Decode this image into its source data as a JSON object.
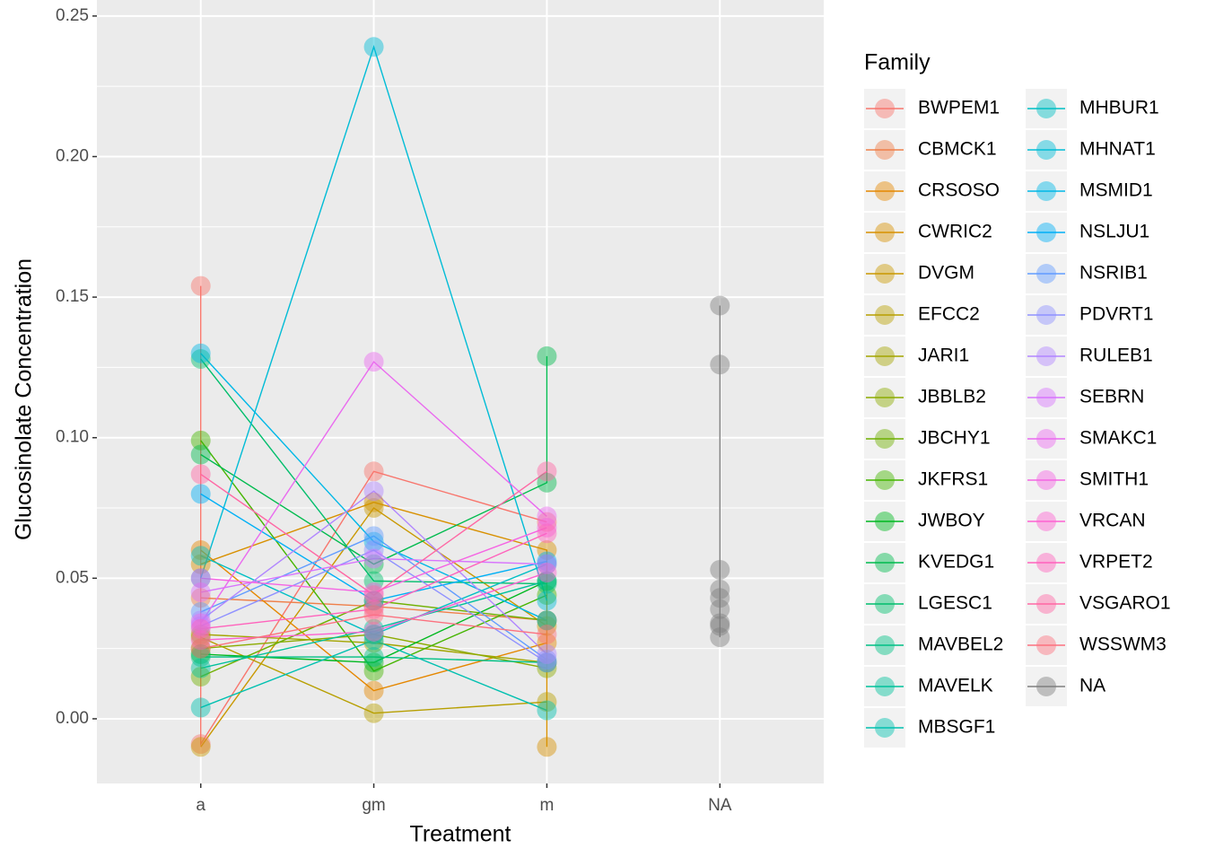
{
  "chart_data": {
    "type": "line",
    "x_label": "Treatment",
    "y_label": "Glucosinolate Concentration",
    "legend_title": "Family",
    "categories": [
      "a",
      "gm",
      "m",
      "NA"
    ],
    "ylim": [
      -0.023,
      0.2557
    ],
    "yticks": [
      {
        "value": 0,
        "label": "0.00"
      },
      0.05,
      {
        "value": 0.1,
        "label": "0.10"
      },
      0.15,
      {
        "value": 0.2,
        "label": "0.20"
      },
      0.25
    ],
    "grid": true,
    "legend": "right",
    "series": [
      {
        "name": "BWPEM1",
        "color": "#F8766D",
        "x": [
          "a",
          "a",
          "gm",
          "m"
        ],
        "values": [
          0.154,
          -0.009,
          0.088,
          0.07
        ]
      },
      {
        "name": "CBMCK1",
        "color": "#EF7F49",
        "x": [
          "a",
          "gm",
          "m"
        ],
        "values": [
          0.043,
          0.04,
          0.035
        ]
      },
      {
        "name": "CRSOSO",
        "color": "#E58700",
        "x": [
          "a",
          "gm",
          "m"
        ],
        "values": [
          0.06,
          0.01,
          0.027
        ]
      },
      {
        "name": "CWRIC2",
        "color": "#D89000",
        "x": [
          "a",
          "gm",
          "m",
          "m"
        ],
        "values": [
          0.055,
          0.077,
          0.06,
          -0.01
        ]
      },
      {
        "name": "DVGM",
        "color": "#C99800",
        "x": [
          "a",
          "gm",
          "m"
        ],
        "values": [
          -0.01,
          0.075,
          0.033
        ]
      },
      {
        "name": "EFCC2",
        "color": "#B79F00",
        "x": [
          "a",
          "gm",
          "m"
        ],
        "values": [
          0.029,
          0.002,
          0.006
        ]
      },
      {
        "name": "JARI1",
        "color": "#A3A500",
        "x": [
          "a",
          "gm",
          "m"
        ],
        "values": [
          0.03,
          0.027,
          0.02
        ]
      },
      {
        "name": "JBBLB2",
        "color": "#8CAB00",
        "x": [
          "a",
          "gm",
          "m"
        ],
        "values": [
          0.025,
          0.03,
          0.018
        ]
      },
      {
        "name": "JBCHY1",
        "color": "#6FB000",
        "x": [
          "a",
          "gm",
          "m"
        ],
        "values": [
          0.015,
          0.042,
          0.035
        ]
      },
      {
        "name": "JKFRS1",
        "color": "#45B500",
        "x": [
          "a",
          "gm",
          "m"
        ],
        "values": [
          0.099,
          0.017,
          0.044
        ]
      },
      {
        "name": "JWBOY",
        "color": "#00B81F",
        "x": [
          "a",
          "gm",
          "m"
        ],
        "values": [
          0.023,
          0.02,
          0.049
        ]
      },
      {
        "name": "KVEDG1",
        "color": "#00BB4E",
        "x": [
          "a",
          "gm",
          "m",
          "m"
        ],
        "values": [
          0.094,
          0.055,
          0.084,
          0.129
        ]
      },
      {
        "name": "LGESC1",
        "color": "#00BE6C",
        "x": [
          "a",
          "gm",
          "m"
        ],
        "values": [
          0.128,
          0.049,
          0.048
        ]
      },
      {
        "name": "MAVBEL2",
        "color": "#00C085",
        "x": [
          "a",
          "gm",
          "m"
        ],
        "values": [
          0.022,
          0.022,
          0.02
        ]
      },
      {
        "name": "MAVELK",
        "color": "#00C19B",
        "x": [
          "a",
          "gm",
          "m"
        ],
        "values": [
          0.018,
          0.032,
          0.049
        ]
      },
      {
        "name": "MBSGF1",
        "color": "#00C0B0",
        "x": [
          "a",
          "gm",
          "m"
        ],
        "values": [
          0.004,
          0.028,
          0.003
        ]
      },
      {
        "name": "MHBUR1",
        "color": "#00BFC4",
        "x": [
          "a",
          "gm",
          "m"
        ],
        "values": [
          0.058,
          0.03,
          0.055
        ]
      },
      {
        "name": "MHNAT1",
        "color": "#00BCD6",
        "x": [
          "a",
          "gm",
          "m"
        ],
        "values": [
          0.05,
          0.239,
          0.042
        ]
      },
      {
        "name": "MSMID1",
        "color": "#00B8E7",
        "x": [
          "a",
          "gm",
          "m"
        ],
        "values": [
          0.13,
          0.063,
          0.035
        ]
      },
      {
        "name": "NSLJU1",
        "color": "#00B0F6",
        "x": [
          "a",
          "gm",
          "m"
        ],
        "values": [
          0.08,
          0.042,
          0.056
        ]
      },
      {
        "name": "NSRIB1",
        "color": "#619CFF",
        "x": [
          "a",
          "gm",
          "m"
        ],
        "values": [
          0.038,
          0.065,
          0.021
        ]
      },
      {
        "name": "PDVRT1",
        "color": "#8F91FF",
        "x": [
          "a",
          "gm",
          "m"
        ],
        "values": [
          0.033,
          0.06,
          0.02
        ]
      },
      {
        "name": "RULEB1",
        "color": "#B186FF",
        "x": [
          "a",
          "gm",
          "m"
        ],
        "values": [
          0.035,
          0.081,
          0.023
        ]
      },
      {
        "name": "SEBRN",
        "color": "#D874FD",
        "x": [
          "a",
          "gm",
          "m"
        ],
        "values": [
          0.045,
          0.057,
          0.055
        ]
      },
      {
        "name": "SMAKC1",
        "color": "#EA6AEF",
        "x": [
          "a",
          "gm",
          "m"
        ],
        "values": [
          0.034,
          0.127,
          0.072
        ]
      },
      {
        "name": "SMITH1",
        "color": "#F564E3",
        "x": [
          "a",
          "gm",
          "m"
        ],
        "values": [
          0.05,
          0.045,
          0.068
        ]
      },
      {
        "name": "VRCAN",
        "color": "#FD61D1",
        "x": [
          "a",
          "gm",
          "m"
        ],
        "values": [
          0.028,
          0.031,
          0.052
        ]
      },
      {
        "name": "VRPET2",
        "color": "#FF62BC",
        "x": [
          "a",
          "gm",
          "m"
        ],
        "values": [
          0.032,
          0.039,
          0.066
        ]
      },
      {
        "name": "VSGARO1",
        "color": "#FF67A4",
        "x": [
          "a",
          "gm",
          "m"
        ],
        "values": [
          0.087,
          0.044,
          0.088
        ]
      },
      {
        "name": "WSSWM3",
        "color": "#FC717F",
        "x": [
          "a",
          "gm",
          "m"
        ],
        "values": [
          0.025,
          0.037,
          0.03
        ]
      },
      {
        "name": "NA",
        "color": "#7F7F7F",
        "x": [
          "NA",
          "NA",
          "NA",
          "NA",
          "NA",
          "NA",
          "NA",
          "NA",
          "NA"
        ],
        "values": [
          0.147,
          0.126,
          0.053,
          0.046,
          0.043,
          0.039,
          0.034,
          0.033,
          0.029
        ]
      }
    ]
  }
}
